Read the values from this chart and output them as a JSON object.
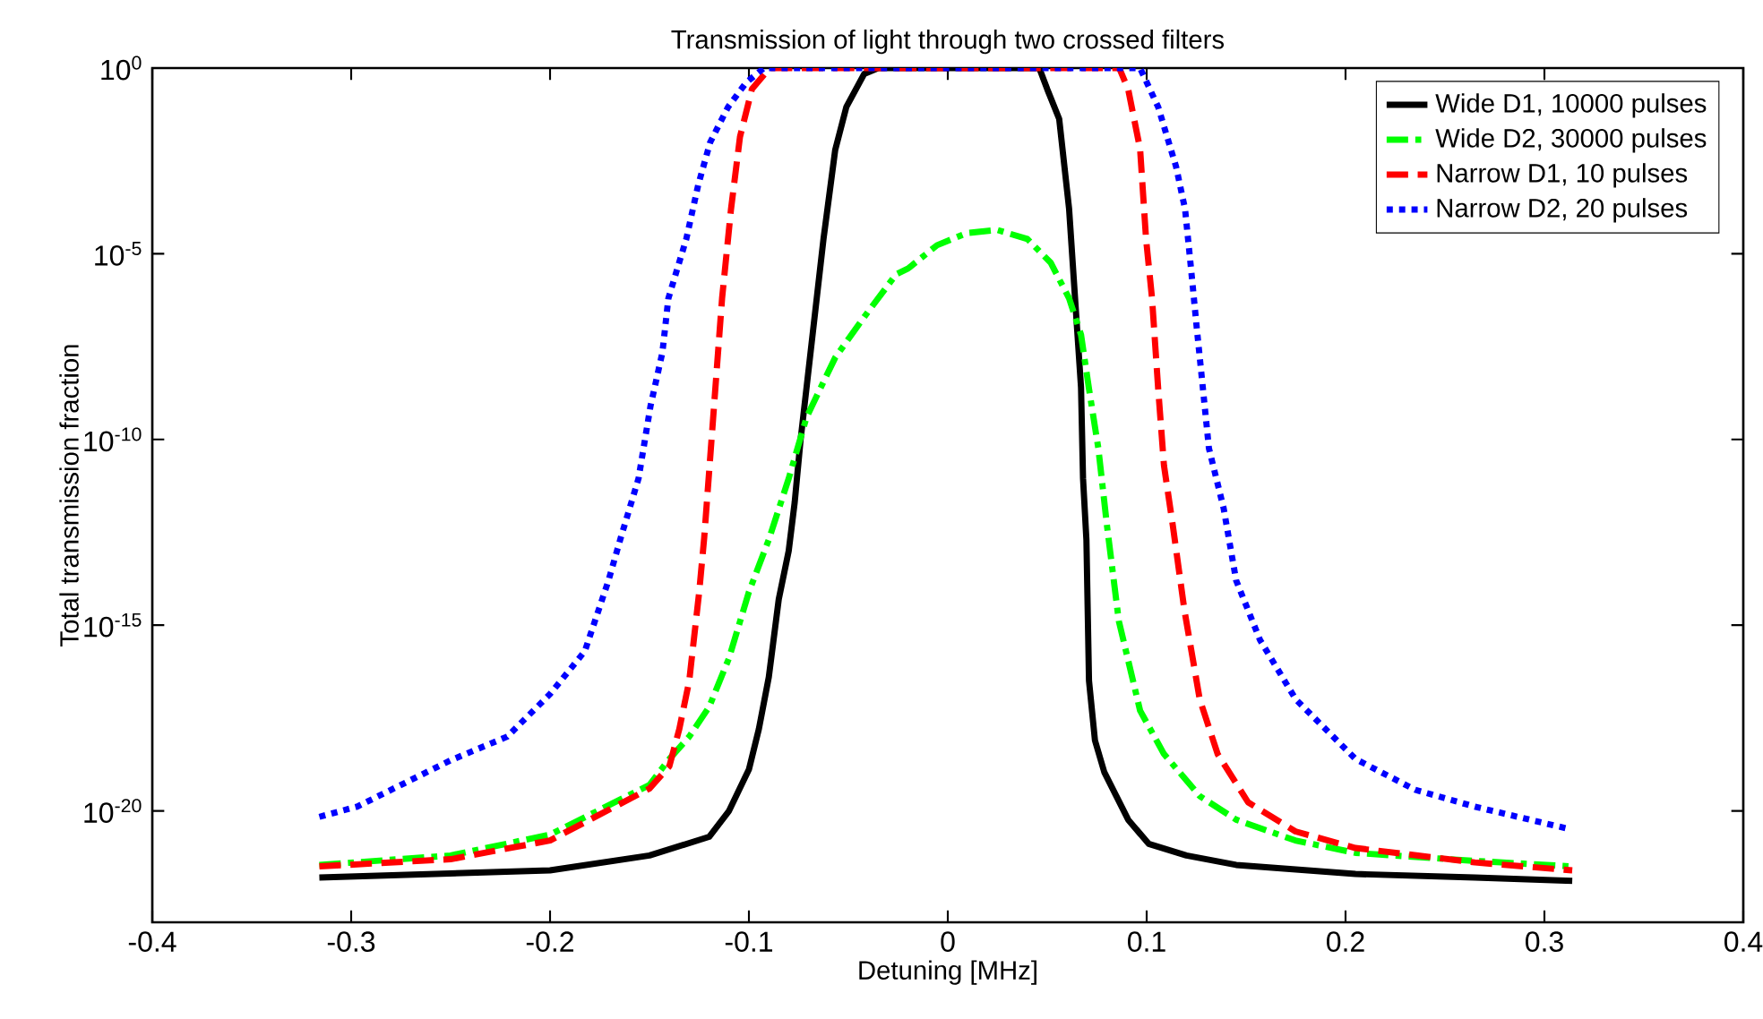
{
  "chart_data": {
    "type": "line",
    "title": "Transmission of light through two crossed filters",
    "xlabel": "Detuning [MHz]",
    "ylabel": "Total transmission fraction",
    "log": "y",
    "legend": "top right",
    "xlim": [
      -0.4,
      0.4
    ],
    "xticks": [
      -0.4,
      -0.3,
      -0.2,
      -0.1,
      0,
      0.1,
      0.2,
      0.3,
      0.4
    ],
    "ylim": [
      1e-23,
      1
    ],
    "yticks": [
      {
        "value": 1,
        "label": "10$^{0}$"
      },
      {
        "value": 1e-05,
        "label": "10$^{-5}$"
      },
      {
        "value": 1e-10,
        "label": "10$^{-10}$"
      },
      {
        "value": 1e-15,
        "label": "10$^{-15}$"
      },
      {
        "value": 1e-20,
        "label": "10$^{-20}$"
      }
    ],
    "series": [
      {
        "name": "Wide D1, 10000 pulses",
        "color": "#000000",
        "line_style": "solid",
        "x": [
          -0.316,
          -0.2,
          -0.15,
          -0.12,
          -0.11,
          -0.1,
          -0.095,
          -0.09,
          -0.085,
          -0.08,
          -0.077,
          -0.074,
          -0.0625,
          -0.0566,
          -0.051,
          -0.042,
          -0.035,
          0.046,
          0.05,
          0.056,
          0.061,
          0.064,
          0.067,
          0.068,
          0.0697,
          0.071,
          0.074,
          0.0787,
          0.0907,
          0.101,
          0.12,
          0.145,
          0.205,
          0.265,
          0.314
        ],
        "values": [
          1.6e-22,
          2.5e-22,
          6.3e-22,
          2e-21,
          1e-20,
          1.3e-19,
          1.6e-18,
          4e-17,
          5e-15,
          1e-13,
          2e-12,
          1e-10,
          2.5e-05,
          0.0063,
          0.09,
          0.7,
          1,
          1,
          0.27,
          0.043,
          0.00016,
          6.3e-07,
          2.5e-09,
          9e-12,
          2e-13,
          3.2e-17,
          7.9e-19,
          1.1e-19,
          5.8e-21,
          1.3e-21,
          6.3e-22,
          3.5e-22,
          2e-22,
          1.6e-22,
          1.3e-22
        ]
      },
      {
        "name": "Wide D2, 30000 pulses",
        "color": "#00ff00",
        "line_style": "dashdot",
        "x": [
          -0.316,
          -0.25,
          -0.2,
          -0.15,
          -0.14,
          -0.13,
          -0.12,
          -0.11,
          -0.1,
          -0.09,
          -0.08,
          -0.071,
          -0.0566,
          -0.042,
          -0.026,
          -0.02,
          -0.0054,
          0.0096,
          0.0247,
          0.04,
          0.0517,
          0.061,
          0.067,
          0.071,
          0.0757,
          0.08,
          0.086,
          0.0967,
          0.1087,
          0.1267,
          0.145,
          0.1747,
          0.205,
          0.265,
          0.314
        ],
        "values": [
          3.5e-22,
          6.3e-22,
          2.3e-21,
          5e-20,
          2.5e-19,
          1e-18,
          6.3e-18,
          1.3e-16,
          7.9e-15,
          2e-13,
          8.9e-12,
          4e-10,
          1.6e-08,
          2e-07,
          2.8e-06,
          4e-06,
          1.7e-05,
          3.6e-05,
          4.4e-05,
          2.5e-05,
          5.8e-06,
          6.3e-07,
          6.6e-08,
          2.3e-09,
          5.8e-11,
          5e-13,
          1.3e-15,
          5e-18,
          3.4e-19,
          2.5e-20,
          5.8e-21,
          1.6e-21,
          7.4e-22,
          4.5e-22,
          3.2e-22
        ]
      },
      {
        "name": "Narrow D1, 10 pulses",
        "color": "#ff0000",
        "line_style": "dashed",
        "x": [
          -0.316,
          -0.25,
          -0.2,
          -0.15,
          -0.14,
          -0.135,
          -0.13,
          -0.125,
          -0.1225,
          -0.118,
          -0.1135,
          -0.109,
          -0.1045,
          -0.0985,
          -0.0895,
          0.0862,
          0.0907,
          0.0967,
          0.0997,
          0.1027,
          0.1058,
          0.1087,
          0.1132,
          0.119,
          0.1267,
          0.1357,
          0.151,
          0.1748,
          0.205,
          0.265,
          0.314
        ],
        "values": [
          3.2e-22,
          5e-22,
          1.6e-21,
          4e-20,
          1.6e-19,
          1.6e-18,
          3.2e-17,
          7.9e-15,
          2.2e-13,
          3.7e-10,
          6.3e-07,
          0.00016,
          0.014,
          0.27,
          1,
          1,
          0.27,
          0.0066,
          2.5e-05,
          6.3e-07,
          2.3e-09,
          2e-11,
          4.6e-13,
          2.5e-15,
          1e-17,
          3.4e-19,
          1.7e-20,
          2.8e-21,
          1e-21,
          4.1e-22,
          2.5e-22
        ]
      },
      {
        "name": "Narrow D2, 20 pulses",
        "color": "#0000ff",
        "line_style": "dotted",
        "x": [
          -0.316,
          -0.297,
          -0.25,
          -0.2215,
          -0.2,
          -0.1825,
          -0.1706,
          -0.1645,
          -0.1555,
          -0.1495,
          -0.1435,
          -0.1405,
          -0.1315,
          -0.1255,
          -0.1195,
          -0.1105,
          -0.1015,
          -0.0925,
          0.0967,
          0.1058,
          0.1148,
          0.1193,
          0.1223,
          0.1252,
          0.1283,
          0.1313,
          0.1387,
          0.145,
          0.157,
          0.175,
          0.205,
          0.235,
          0.265,
          0.313
        ],
        "values": [
          6.9e-21,
          1.3e-20,
          2.3e-19,
          1e-18,
          1.4e-17,
          2e-16,
          1.6e-14,
          2.2e-13,
          8.9e-12,
          7.9e-10,
          2.2e-08,
          6.3e-07,
          2.5e-05,
          0.00071,
          0.01,
          0.089,
          0.4,
          1,
          1,
          0.089,
          0.0022,
          0.00016,
          4e-06,
          1e-07,
          2.3e-09,
          5.8e-11,
          1.4e-12,
          1.6e-14,
          4e-16,
          1e-17,
          2.5e-19,
          3.7e-20,
          1.3e-20,
          3.2e-21
        ]
      }
    ]
  }
}
